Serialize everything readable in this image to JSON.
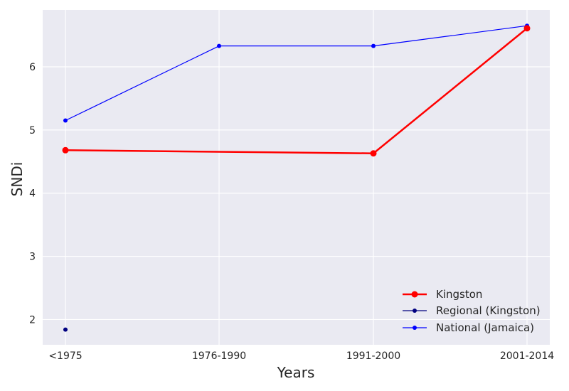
{
  "chart_data": {
    "type": "line",
    "categories": [
      "<1975",
      "1976-1990",
      "1991-2000",
      "2001-2014"
    ],
    "xlabel": "Years",
    "ylabel": "SNDi",
    "ylim": [
      1.6,
      6.9
    ],
    "yticks": [
      2,
      3,
      4,
      5,
      6
    ],
    "grid": true,
    "legend_position": "bottom-right",
    "colors": {
      "background": "#eaeaf2",
      "grid": "#ffffff"
    },
    "series": [
      {
        "name": "Kingston",
        "color": "#ff0000",
        "marker": "circle",
        "values": [
          4.68,
          null,
          4.63,
          6.61
        ]
      },
      {
        "name": "Regional (Kingston)",
        "color": "#000080",
        "marker": "circle",
        "values": [
          1.84,
          null,
          null,
          null
        ]
      },
      {
        "name": "National (Jamaica)",
        "color": "#0000ff",
        "marker": "circle",
        "values": [
          5.15,
          6.33,
          6.33,
          6.65
        ]
      }
    ]
  }
}
